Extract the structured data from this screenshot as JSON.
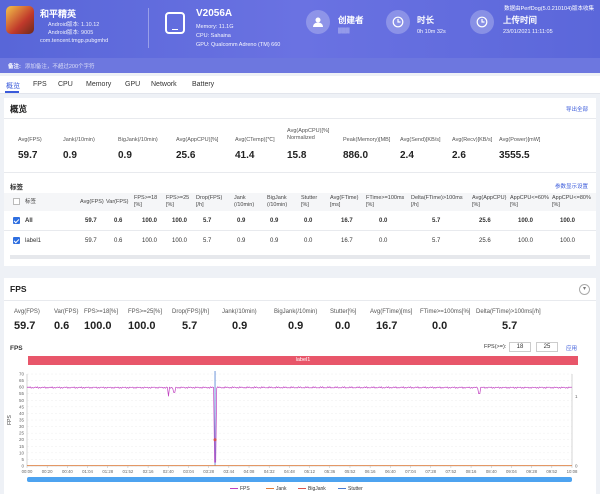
{
  "header": {
    "app_name": "和平精英",
    "app_version": "Android版本: 1.10.12",
    "app_build": "Android版本: 9005",
    "app_package": "com.tencent.tmgp.pubgmhd",
    "device_name": "V2056A",
    "device_memory": "Memory: 11.1G",
    "device_cpu": "CPU: Sahaina",
    "device_gpu": "GPU: Qualcomm Adreno (TM) 660",
    "creator_label": "创建者",
    "creator_value": "▒▒▒",
    "duration_label": "时长",
    "duration_value": "0h 10m 32s",
    "upload_label": "上传时间",
    "upload_value": "23/01/2021 11:11:05",
    "top_link": "数据由PerfDog(5.0.210104)版本收集"
  },
  "notebar": {
    "label": "备注:",
    "placeholder": "添加备注，不超过200个字符"
  },
  "tabs": [
    "概览",
    "FPS",
    "CPU",
    "Memory",
    "GPU",
    "Network",
    "Battery"
  ],
  "overview": {
    "title": "概览",
    "export_label": "导出全部",
    "metrics": [
      {
        "label": "Avg(FPS)",
        "value": "59.7"
      },
      {
        "label": "Jank(/10min)",
        "value": "0.9"
      },
      {
        "label": "BigJank(/10min)",
        "value": "0.9"
      },
      {
        "label": "Avg(AppCPU)[%]",
        "value": "25.6"
      },
      {
        "label": "Avg(CTemp)[℃]",
        "value": "41.4"
      },
      {
        "label": "Avg(AppCPU)[%] Normalized",
        "value": "15.8"
      },
      {
        "label": "Peak(Memory)[MB]",
        "value": "886.0"
      },
      {
        "label": "Avg(Send)[KB/s]",
        "value": "2.4"
      },
      {
        "label": "Avg(Recv)[KB/s]",
        "value": "2.6"
      },
      {
        "label": "Avg(Power)[mW]",
        "value": "3555.5"
      }
    ],
    "label_section": "标签",
    "label_setting": "参数显示设置",
    "table_headers": [
      "标签",
      "Avg(FPS)",
      "Var(FPS)",
      "FPS>=18 [%]",
      "FPS>=25 [%]",
      "Drop(FPS) [/h]",
      "Jank (/10min)",
      "BigJank (/10min)",
      "Stutter [%]",
      "Avg(FTime) [ms]",
      "FTime>=100ms [%]",
      "Delta(FTime)>100ms [/h]",
      "Avg(AppCPU) [%]",
      "AppCPU<=60% [%]",
      "AppCPU<=80% [%]"
    ],
    "rows": [
      {
        "name": "All",
        "cells": [
          "59.7",
          "0.6",
          "100.0",
          "100.0",
          "5.7",
          "0.9",
          "0.9",
          "0.0",
          "16.7",
          "0.0",
          "5.7",
          "25.6",
          "100.0",
          "100.0"
        ]
      },
      {
        "name": "label1",
        "cells": [
          "59.7",
          "0.6",
          "100.0",
          "100.0",
          "5.7",
          "0.9",
          "0.9",
          "0.0",
          "16.7",
          "0.0",
          "5.7",
          "25.6",
          "100.0",
          "100.0"
        ]
      }
    ]
  },
  "fps_panel": {
    "title": "FPS",
    "metrics": [
      {
        "label": "Avg(FPS)",
        "value": "59.7"
      },
      {
        "label": "Var(FPS)",
        "value": "0.6"
      },
      {
        "label": "FPS>=18[%]",
        "value": "100.0"
      },
      {
        "label": "FPS>=25[%]",
        "value": "100.0"
      },
      {
        "label": "Drop(FPS)[/h]",
        "value": "5.7"
      },
      {
        "label": "Jank(/10min)",
        "value": "0.9"
      },
      {
        "label": "BigJank(/10min)",
        "value": "0.9"
      },
      {
        "label": "Stutter[%]",
        "value": "0.0"
      },
      {
        "label": "Avg(FTime)[ms]",
        "value": "16.7"
      },
      {
        "label": "FTime>=100ms[%]",
        "value": "0.0"
      },
      {
        "label": "Delta(FTime)>100ms[/h]",
        "value": "5.7"
      }
    ],
    "chart_caption": "FPS",
    "fps_filter_label": "FPS(>=):",
    "fps_filter_1": "18",
    "fps_filter_2": "25",
    "apply_label": "应用",
    "label_band": "label1"
  },
  "chart_data": {
    "type": "line",
    "ylabel": "FPS",
    "ylim": [
      0,
      70
    ],
    "yticks": [
      0,
      5,
      10,
      15,
      20,
      25,
      30,
      35,
      40,
      45,
      50,
      55,
      60,
      65,
      70
    ],
    "y2_ticks": [
      "1",
      "0"
    ],
    "x_ticks": [
      "00:00",
      "00:20",
      "00:40",
      "01:04",
      "01:28",
      "01:52",
      "02:16",
      "02:40",
      "03:04",
      "03:28",
      "03:44",
      "04:08",
      "04:32",
      "04:48",
      "05:12",
      "05:36",
      "05:52",
      "06:16",
      "06:40",
      "07:04",
      "07:28",
      "07:52",
      "08:16",
      "08:40",
      "09:04",
      "09:28",
      "09:52",
      "10:08"
    ],
    "series": [
      {
        "name": "FPS",
        "color": "#c040c0",
        "baseline": 59.7,
        "dips": [
          [
            0.26,
            53
          ],
          [
            0.27,
            56
          ],
          [
            0.345,
            3
          ],
          [
            0.83,
            55
          ]
        ]
      },
      {
        "name": "Jank",
        "color": "#e07b39"
      },
      {
        "name": "BigJank",
        "color": "#d9534f"
      },
      {
        "name": "Stutter",
        "color": "#4a7bd0"
      }
    ],
    "marker_position": 0.345
  }
}
